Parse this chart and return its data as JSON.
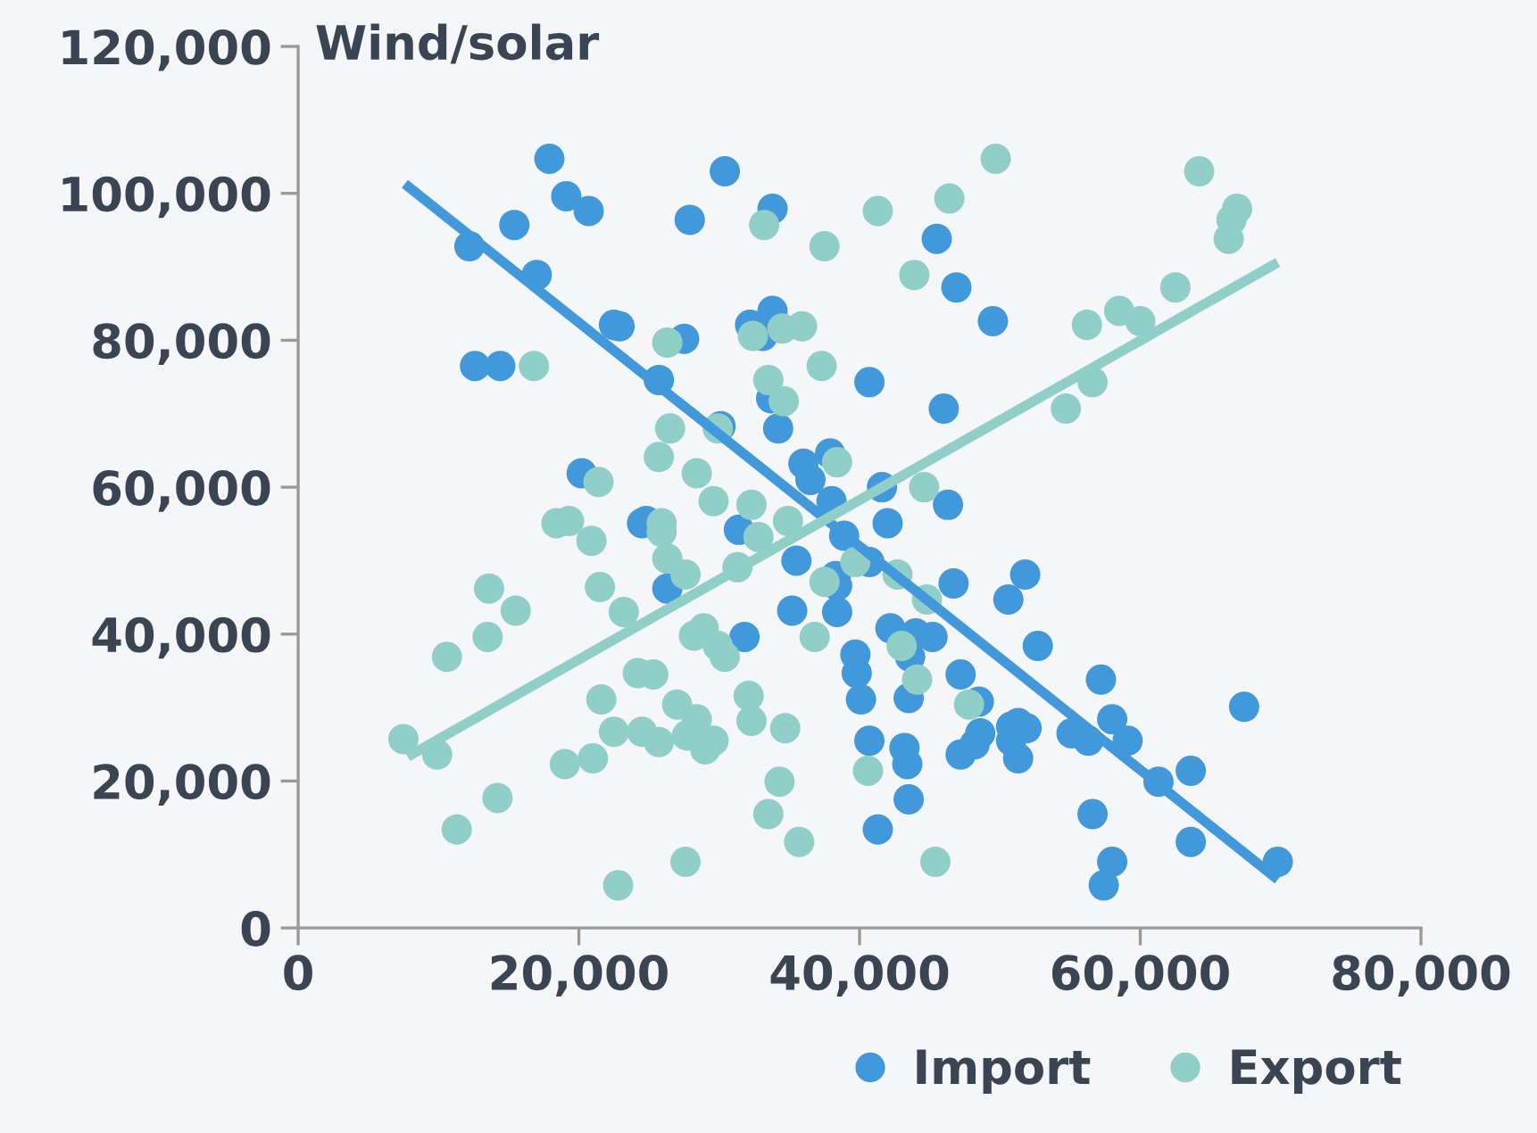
{
  "chart_data": {
    "type": "scatter",
    "ylabel": "Wind/solar",
    "xlim": [
      0,
      80000
    ],
    "ylim": [
      0,
      120000
    ],
    "xticks": [
      0,
      {
        "value": 20000,
        "label": "20,000"
      },
      {
        "value": 40000,
        "label": "40,000"
      },
      {
        "value": 60000,
        "label": "60,000"
      },
      {
        "value": 80000,
        "label": "80,000"
      }
    ],
    "yticks": [
      0,
      {
        "value": 20000,
        "label": "20,000"
      },
      {
        "value": 40000,
        "label": "40,000"
      },
      {
        "value": 60000,
        "label": "60,000"
      },
      {
        "value": 80000,
        "label": "80,000"
      },
      {
        "value": 100000,
        "label": "100,000"
      },
      {
        "value": 120000,
        "label": "120,000"
      }
    ],
    "grid": false,
    "legend": "bottom right",
    "marker": "circle",
    "series": [
      {
        "name": "Import",
        "color": "#4199dc",
        "x": [
          17900,
          19100,
          20700,
          15400,
          12200,
          17000,
          22500,
          22900,
          27500,
          12600,
          14400,
          25700,
          30400,
          33800,
          27900,
          33800,
          32200,
          33100,
          33700,
          34200,
          30100,
          20200,
          36000,
          36500,
          37900,
          38000,
          40700,
          24800,
          31400,
          45500,
          46900,
          49500,
          46000,
          41600,
          46300,
          42000,
          38900,
          24500,
          26300,
          35500,
          35200,
          38400,
          31800,
          38400,
          39700,
          39800,
          40100,
          40700,
          40700,
          38300,
          46700,
          51800,
          50600,
          42200,
          44000,
          45200,
          43600,
          52700,
          43500,
          47200,
          48500,
          57200,
          67400,
          58000,
          59100,
          51300,
          50800,
          51900,
          55100,
          56300,
          48600,
          48200,
          47200,
          50800,
          51300,
          43200,
          43400,
          61300,
          63600,
          43500,
          56600,
          41300,
          63600,
          58000,
          57400,
          69800
        ],
        "values": [
          104700,
          99600,
          97600,
          95700,
          92800,
          88900,
          82100,
          81900,
          80200,
          76500,
          76500,
          74600,
          103000,
          97900,
          96400,
          84000,
          82100,
          80600,
          72100,
          68000,
          68300,
          61900,
          63200,
          61000,
          64600,
          58100,
          74300,
          55400,
          54200,
          93800,
          87200,
          82600,
          70700,
          60000,
          57600,
          55100,
          53400,
          55100,
          46200,
          50000,
          43200,
          43000,
          39600,
          46600,
          37200,
          34700,
          31100,
          25500,
          49800,
          47900,
          46900,
          48100,
          44700,
          40800,
          40100,
          39600,
          36900,
          38400,
          31300,
          34500,
          30800,
          33800,
          30100,
          28400,
          25500,
          27900,
          27400,
          27200,
          26500,
          25500,
          26500,
          25000,
          23600,
          25500,
          23100,
          24500,
          22300,
          19900,
          21400,
          17500,
          15500,
          13400,
          11700,
          9000,
          5800,
          9000
        ]
      },
      {
        "name": "Export",
        "color": "#90cfc8",
        "x": [
          33200,
          37500,
          16800,
          26300,
          32400,
          34500,
          35900,
          37300,
          33500,
          34600,
          26500,
          29900,
          25700,
          28400,
          29600,
          32300,
          21400,
          18400,
          19300,
          34900,
          41300,
          49700,
          46400,
          43900,
          64200,
          66900,
          66500,
          66300,
          62500,
          56200,
          58500,
          60000,
          56600,
          54700,
          38400,
          44600,
          20900,
          25900,
          25900,
          26300,
          27600,
          32800,
          31300,
          39700,
          37500,
          13600,
          15500,
          13500,
          10600,
          21500,
          23200,
          28200,
          28900,
          30400,
          29900,
          36800,
          24200,
          25300,
          21600,
          27000,
          32100,
          32300,
          28400,
          22500,
          24500,
          25700,
          27700,
          29600,
          29000,
          34700,
          7500,
          9900,
          19000,
          21000,
          34300,
          14200,
          33500,
          11300,
          35700,
          27600,
          22800,
          42700,
          44800,
          43000,
          44100,
          47800,
          40600,
          45400
        ],
        "values": [
          95700,
          92800,
          76500,
          79700,
          80600,
          81600,
          81900,
          76500,
          74600,
          71700,
          68000,
          68000,
          64100,
          61900,
          58100,
          57600,
          60700,
          55100,
          55400,
          55400,
          97600,
          104700,
          99300,
          88900,
          103000,
          97900,
          96400,
          93800,
          87200,
          82100,
          84000,
          82600,
          74300,
          70700,
          63400,
          60000,
          52700,
          55100,
          53900,
          50300,
          48100,
          53200,
          49100,
          49800,
          47100,
          46200,
          43200,
          39600,
          36900,
          46400,
          43000,
          39800,
          40800,
          36900,
          38400,
          39600,
          34700,
          34500,
          31100,
          30400,
          31600,
          28200,
          28400,
          26700,
          26700,
          25300,
          26200,
          25500,
          24300,
          27200,
          25700,
          23600,
          22300,
          23100,
          19900,
          17700,
          15500,
          13400,
          11700,
          9000,
          5800,
          48100,
          44700,
          38400,
          33800,
          30400,
          21400,
          9000
        ]
      },
      {
        "type": "line",
        "marker": "none",
        "color": "#4199dc",
        "x": [
          7600,
          69800
        ],
        "values": [
          101300,
          6600
        ]
      },
      {
        "type": "line",
        "marker": "none",
        "color": "#90cfc8",
        "x": [
          7800,
          69800
        ],
        "values": [
          23300,
          90600
        ]
      }
    ]
  }
}
